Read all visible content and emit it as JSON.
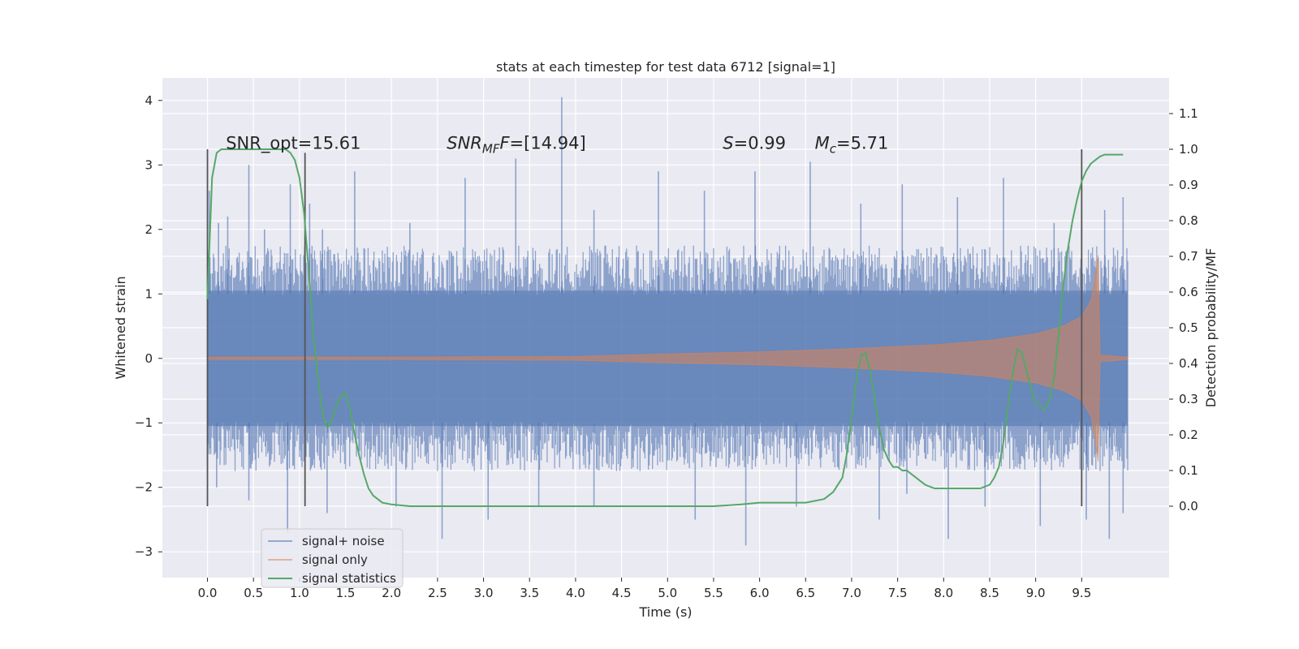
{
  "chart_data": {
    "type": "line",
    "title": "stats at each timestep for test data 6712 [signal=1]",
    "xlabel": "Time (s)",
    "ylabel_left": "Whitened strain",
    "ylabel_right": "Detection probability/MF",
    "xlim": [
      -0.49,
      10.45
    ],
    "ylim_left": [
      -3.4,
      4.35
    ],
    "ylim_right": [
      -0.2,
      1.2
    ],
    "x_ticks": [
      0.0,
      0.5,
      1.0,
      1.5,
      2.0,
      2.5,
      3.0,
      3.5,
      4.0,
      4.5,
      5.0,
      5.5,
      6.0,
      6.5,
      7.0,
      7.5,
      8.0,
      8.5,
      9.0,
      9.5
    ],
    "x_tick_labels": [
      "0.0",
      "0.5",
      "1.0",
      "1.5",
      "2.0",
      "2.5",
      "3.0",
      "3.5",
      "4.0",
      "4.5",
      "5.0",
      "5.5",
      "6.0",
      "6.5",
      "7.0",
      "7.5",
      "8.0",
      "8.5",
      "9.0",
      "9.5"
    ],
    "y_left_ticks": [
      -3,
      -2,
      -1,
      0,
      1,
      2,
      3,
      4
    ],
    "y_left_tick_labels": [
      "−3",
      "−2",
      "−1",
      "0",
      "1",
      "2",
      "3",
      "4"
    ],
    "y_right_ticks": [
      0.0,
      0.1,
      0.2,
      0.3,
      0.4,
      0.5,
      0.6,
      0.7,
      0.8,
      0.9,
      1.0,
      1.1
    ],
    "y_right_tick_labels": [
      "0.0",
      "0.1",
      "0.2",
      "0.3",
      "0.4",
      "0.5",
      "0.6",
      "0.7",
      "0.8",
      "0.9",
      "1.0",
      "1.1"
    ],
    "grid": true,
    "background": "#eaeaf2",
    "annotations": [
      {
        "text": "SNR_opt=15.61",
        "x": 0.2,
        "y": 3.25
      },
      {
        "html": "<tspan font-style='italic'>SNR</tspan><tspan font-style='italic' font-size='15' dy='5'>MF</tspan><tspan font-style='italic' dy='-5'>F</tspan>=[14.94]",
        "x": 2.6,
        "y": 3.25
      },
      {
        "html": "<tspan font-style='italic'>S</tspan>=0.99",
        "x": 5.6,
        "y": 3.25
      },
      {
        "html": "<tspan font-style='italic'>M</tspan><tspan font-style='italic' font-size='15' dy='5'>c</tspan><tspan dy='-5'>=5.71</tspan>",
        "x": 6.6,
        "y": 3.25
      }
    ],
    "vertical_markers": [
      {
        "x": 0.0,
        "y_right_range": [
          0.0,
          1.0
        ],
        "color": "#555555"
      },
      {
        "x": 1.06,
        "y_right_range": [
          0.0,
          0.99
        ],
        "color": "#555555"
      },
      {
        "x": 9.5,
        "y_right_range": [
          0.0,
          1.0
        ],
        "color": "#555555"
      }
    ],
    "legend": {
      "position": "lower-left",
      "entries": [
        {
          "label": "signal+ noise",
          "color": "#4c72b0"
        },
        {
          "label": "signal only",
          "color": "#dd8452"
        },
        {
          "label": "signal statistics",
          "color": "#55a868"
        }
      ]
    },
    "series": [
      {
        "name": "signal+ noise",
        "axis": "left",
        "color": "#4c72b0",
        "alpha": 0.5,
        "x_range": [
          0.0,
          10.0
        ],
        "band_upper_typical": 1.4,
        "band_lower_typical": -1.4,
        "peaks": [
          {
            "x": 0.02,
            "y": 2.6
          },
          {
            "x": 0.12,
            "y": 2.1
          },
          {
            "x": 0.22,
            "y": 2.2
          },
          {
            "x": 0.45,
            "y": 3.0
          },
          {
            "x": 0.62,
            "y": 2.0
          },
          {
            "x": 0.9,
            "y": 2.7
          },
          {
            "x": 1.11,
            "y": 2.4
          },
          {
            "x": 1.25,
            "y": 2.0
          },
          {
            "x": 1.6,
            "y": 2.9
          },
          {
            "x": 2.2,
            "y": 2.1
          },
          {
            "x": 2.8,
            "y": 2.8
          },
          {
            "x": 3.35,
            "y": 3.1
          },
          {
            "x": 3.85,
            "y": 4.05
          },
          {
            "x": 4.2,
            "y": 2.3
          },
          {
            "x": 4.9,
            "y": 2.9
          },
          {
            "x": 5.4,
            "y": 2.6
          },
          {
            "x": 5.95,
            "y": 2.9
          },
          {
            "x": 6.55,
            "y": 3.05
          },
          {
            "x": 7.1,
            "y": 2.4
          },
          {
            "x": 7.55,
            "y": 2.7
          },
          {
            "x": 8.15,
            "y": 2.5
          },
          {
            "x": 8.65,
            "y": 2.8
          },
          {
            "x": 9.2,
            "y": 2.1
          },
          {
            "x": 9.75,
            "y": 2.3
          },
          {
            "x": 9.95,
            "y": 2.5
          }
        ],
        "troughs": [
          {
            "x": 0.1,
            "y": -2.0
          },
          {
            "x": 0.45,
            "y": -2.2
          },
          {
            "x": 0.87,
            "y": -2.7
          },
          {
            "x": 1.3,
            "y": -2.4
          },
          {
            "x": 2.05,
            "y": -2.3
          },
          {
            "x": 2.55,
            "y": -2.8
          },
          {
            "x": 3.05,
            "y": -2.5
          },
          {
            "x": 3.6,
            "y": -2.3
          },
          {
            "x": 4.2,
            "y": -2.3
          },
          {
            "x": 5.3,
            "y": -2.5
          },
          {
            "x": 5.85,
            "y": -2.9
          },
          {
            "x": 6.4,
            "y": -2.3
          },
          {
            "x": 7.3,
            "y": -2.5
          },
          {
            "x": 7.6,
            "y": -2.1
          },
          {
            "x": 8.05,
            "y": -2.8
          },
          {
            "x": 8.45,
            "y": -2.3
          },
          {
            "x": 9.05,
            "y": -2.6
          },
          {
            "x": 9.55,
            "y": -2.5
          },
          {
            "x": 9.8,
            "y": -2.8
          },
          {
            "x": 9.95,
            "y": -2.4
          }
        ]
      },
      {
        "name": "signal only",
        "axis": "left",
        "color": "#dd8452",
        "alpha": 0.6,
        "x_range": [
          0.0,
          10.0
        ],
        "envelope": [
          [
            0.0,
            0.02
          ],
          [
            2.0,
            0.02
          ],
          [
            4.0,
            0.03
          ],
          [
            5.0,
            0.07
          ],
          [
            6.0,
            0.1
          ],
          [
            7.0,
            0.15
          ],
          [
            8.0,
            0.22
          ],
          [
            8.5,
            0.28
          ],
          [
            9.0,
            0.38
          ],
          [
            9.3,
            0.5
          ],
          [
            9.5,
            0.65
          ],
          [
            9.6,
            0.9
          ],
          [
            9.65,
            1.3
          ],
          [
            9.68,
            1.6
          ],
          [
            9.7,
            0.05
          ],
          [
            10.0,
            0.02
          ]
        ]
      },
      {
        "name": "signal statistics",
        "axis": "right",
        "color": "#55a868",
        "x": [
          0.0,
          0.05,
          0.1,
          0.15,
          0.2,
          0.3,
          0.4,
          0.5,
          0.6,
          0.7,
          0.8,
          0.85,
          0.9,
          0.95,
          1.0,
          1.05,
          1.1,
          1.15,
          1.2,
          1.25,
          1.3,
          1.35,
          1.4,
          1.45,
          1.5,
          1.55,
          1.6,
          1.65,
          1.7,
          1.75,
          1.8,
          1.9,
          2.0,
          2.2,
          2.5,
          3.0,
          3.5,
          4.0,
          4.5,
          5.0,
          5.5,
          5.8,
          6.0,
          6.2,
          6.5,
          6.7,
          6.8,
          6.9,
          6.95,
          7.0,
          7.05,
          7.1,
          7.15,
          7.2,
          7.25,
          7.3,
          7.35,
          7.4,
          7.45,
          7.5,
          7.55,
          7.6,
          7.7,
          7.8,
          7.9,
          8.0,
          8.1,
          8.2,
          8.3,
          8.4,
          8.5,
          8.55,
          8.6,
          8.65,
          8.7,
          8.75,
          8.8,
          8.85,
          8.9,
          8.95,
          9.0,
          9.05,
          9.1,
          9.15,
          9.2,
          9.25,
          9.3,
          9.35,
          9.4,
          9.45,
          9.5,
          9.55,
          9.6,
          9.65,
          9.7,
          9.75,
          9.8,
          9.85,
          9.9,
          9.95
        ],
        "y": [
          0.58,
          0.92,
          0.99,
          1.0,
          1.0,
          1.0,
          1.0,
          1.0,
          1.0,
          1.0,
          1.0,
          1.0,
          0.99,
          0.97,
          0.92,
          0.82,
          0.66,
          0.48,
          0.36,
          0.26,
          0.22,
          0.24,
          0.28,
          0.31,
          0.32,
          0.27,
          0.2,
          0.14,
          0.09,
          0.05,
          0.03,
          0.01,
          0.005,
          0.0,
          0.0,
          0.0,
          0.0,
          0.0,
          0.0,
          0.0,
          0.0,
          0.005,
          0.01,
          0.01,
          0.01,
          0.02,
          0.04,
          0.08,
          0.15,
          0.25,
          0.35,
          0.42,
          0.43,
          0.38,
          0.3,
          0.22,
          0.16,
          0.13,
          0.11,
          0.11,
          0.1,
          0.1,
          0.08,
          0.06,
          0.05,
          0.05,
          0.05,
          0.05,
          0.05,
          0.05,
          0.06,
          0.08,
          0.11,
          0.18,
          0.28,
          0.37,
          0.44,
          0.43,
          0.38,
          0.33,
          0.29,
          0.28,
          0.27,
          0.3,
          0.36,
          0.48,
          0.62,
          0.72,
          0.8,
          0.86,
          0.91,
          0.94,
          0.96,
          0.97,
          0.98,
          0.985,
          0.985,
          0.985,
          0.985,
          0.985
        ]
      }
    ]
  }
}
